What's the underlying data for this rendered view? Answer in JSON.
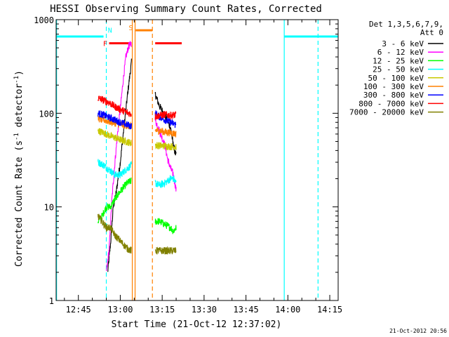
{
  "chart_data": {
    "type": "line",
    "title": "HESSI Observing Summary Count Rates, Corrected",
    "xlabel": "Start Time (21-Oct-12 12:37:02)",
    "ylabel": "Corrected Count Rate (s⁻¹ detector⁻¹)",
    "ylabel_main": "Corrected Count Rate (s",
    "ylabel_sup1": "-1",
    "ylabel_mid": " detector",
    "ylabel_sup2": "-1",
    "ylabel_end": ")",
    "yscale": "log",
    "ylim": [
      1,
      1000
    ],
    "xlim": [
      "12:37:02",
      "14:18:00"
    ],
    "xlim_minutes": [
      757.0333,
      858.0
    ],
    "yticks": [
      {
        "value": 1,
        "label": "1"
      },
      {
        "value": 10,
        "label": "10"
      },
      {
        "value": 100,
        "label": "100"
      },
      {
        "value": 1000,
        "label": "1000"
      }
    ],
    "xticks": [
      {
        "minute": 765,
        "label": "12:45"
      },
      {
        "minute": 780,
        "label": "13:00"
      },
      {
        "minute": 795,
        "label": "13:15"
      },
      {
        "minute": 810,
        "label": "13:30"
      },
      {
        "minute": 825,
        "label": "13:45"
      },
      {
        "minute": 840,
        "label": "14:00"
      },
      {
        "minute": 855,
        "label": "14:15"
      }
    ],
    "legend": {
      "header": [
        "Det 1,3,5,6,7,9,",
        "Att 0"
      ],
      "placement": "right"
    },
    "series": [
      {
        "name": "3 - 6 keV",
        "color": "#000000",
        "segments": [
          {
            "t0": 775.5,
            "t1": 784.0,
            "pts": [
              [
                775.5,
                2
              ],
              [
                776.5,
                4
              ],
              [
                777.5,
                10
              ],
              [
                778.5,
                14
              ],
              [
                780,
                30
              ],
              [
                781.5,
                80
              ],
              [
                783,
                200
              ],
              [
                784,
                350
              ]
            ]
          },
          {
            "t0": 792.5,
            "t1": 800.0,
            "pts": [
              [
                792.5,
                160
              ],
              [
                794,
                120
              ],
              [
                796,
                95
              ],
              [
                798,
                70
              ],
              [
                799,
                45
              ],
              [
                800,
                35
              ]
            ]
          }
        ]
      },
      {
        "name": "6 - 12 keV",
        "color": "#ff00ff",
        "segments": [
          {
            "t0": 775.0,
            "t1": 784.0,
            "pts": [
              [
                775,
                2
              ],
              [
                776,
                3.5
              ],
              [
                777,
                12
              ],
              [
                778,
                28
              ],
              [
                779,
                60
              ],
              [
                780,
                110
              ],
              [
                781,
                220
              ],
              [
                782,
                400
              ],
              [
                783,
                520
              ],
              [
                784,
                560
              ]
            ]
          },
          {
            "t0": 792.5,
            "t1": 800.0,
            "pts": [
              [
                792.5,
                85
              ],
              [
                794,
                65
              ],
              [
                796,
                45
              ],
              [
                797,
                32
              ],
              [
                798,
                26
              ],
              [
                799,
                22
              ],
              [
                800,
                15
              ]
            ]
          }
        ]
      },
      {
        "name": "12 - 25 keV",
        "color": "#00ff00",
        "segments": [
          {
            "t0": 772.0,
            "t1": 784.0,
            "pts": [
              [
                772,
                7
              ],
              [
                773.5,
                8
              ],
              [
                775,
                10
              ],
              [
                776.5,
                10
              ],
              [
                778,
                12
              ],
              [
                779.5,
                14
              ],
              [
                781,
                16
              ],
              [
                782.5,
                18
              ],
              [
                784,
                19
              ]
            ]
          },
          {
            "t0": 792.5,
            "t1": 800.0,
            "pts": [
              [
                792.5,
                7
              ],
              [
                794,
                7
              ],
              [
                796,
                6.5
              ],
              [
                798,
                6
              ],
              [
                799,
                5.5
              ],
              [
                800,
                6
              ]
            ]
          }
        ]
      },
      {
        "name": "25 - 50 keV",
        "color": "#00ffff",
        "segments": [
          {
            "t0": 772.0,
            "t1": 784.0,
            "pts": [
              [
                772,
                30
              ],
              [
                774,
                28
              ],
              [
                776,
                25
              ],
              [
                778,
                22
              ],
              [
                780,
                22
              ],
              [
                782,
                25
              ],
              [
                784,
                28
              ]
            ]
          },
          {
            "t0": 792.5,
            "t1": 800.0,
            "pts": [
              [
                792.5,
                18
              ],
              [
                794,
                17
              ],
              [
                796,
                18
              ],
              [
                798,
                20
              ],
              [
                799,
                20
              ],
              [
                800,
                18
              ]
            ]
          }
        ]
      },
      {
        "name": "50 - 100 keV",
        "color": "#c8c800",
        "segments": [
          {
            "t0": 772.0,
            "t1": 784.0,
            "pts": [
              [
                772,
                65
              ],
              [
                774,
                62
              ],
              [
                776,
                58
              ],
              [
                778,
                55
              ],
              [
                780,
                52
              ],
              [
                782,
                50
              ],
              [
                784,
                48
              ]
            ]
          },
          {
            "t0": 792.5,
            "t1": 800.0,
            "pts": [
              [
                792.5,
                46
              ],
              [
                794,
                45
              ],
              [
                796,
                45
              ],
              [
                798,
                44
              ],
              [
                800,
                44
              ]
            ]
          }
        ]
      },
      {
        "name": "100 - 300 keV",
        "color": "#ff8000",
        "segments": [
          {
            "t0": 772.0,
            "t1": 784.0,
            "pts": [
              [
                772,
                88
              ],
              [
                774,
                85
              ],
              [
                776,
                82
              ],
              [
                778,
                79
              ],
              [
                780,
                76
              ],
              [
                782,
                74
              ],
              [
                784,
                72
              ]
            ]
          },
          {
            "t0": 792.5,
            "t1": 800.0,
            "pts": [
              [
                792.5,
                66
              ],
              [
                794,
                65
              ],
              [
                796,
                63
              ],
              [
                798,
                62
              ],
              [
                800,
                60
              ]
            ]
          }
        ]
      },
      {
        "name": "300 - 800 keV",
        "color": "#0000ff",
        "segments": [
          {
            "t0": 772.0,
            "t1": 784.0,
            "pts": [
              [
                772,
                100
              ],
              [
                774,
                96
              ],
              [
                776,
                90
              ],
              [
                778,
                85
              ],
              [
                780,
                80
              ],
              [
                782,
                76
              ],
              [
                784,
                73
              ]
            ]
          },
          {
            "t0": 792.5,
            "t1": 800.0,
            "pts": [
              [
                792.5,
                100
              ],
              [
                794,
                92
              ],
              [
                796,
                85
              ],
              [
                798,
                80
              ],
              [
                800,
                75
              ]
            ]
          }
        ]
      },
      {
        "name": "800 - 7000 keV",
        "color": "#ff0000",
        "segments": [
          {
            "t0": 772.0,
            "t1": 784.0,
            "pts": [
              [
                772,
                145
              ],
              [
                774,
                138
              ],
              [
                776,
                130
              ],
              [
                778,
                118
              ],
              [
                780,
                110
              ],
              [
                782,
                103
              ],
              [
                784,
                98
              ]
            ]
          },
          {
            "t0": 792.5,
            "t1": 800.0,
            "pts": [
              [
                792.5,
                92
              ],
              [
                794,
                95
              ],
              [
                796,
                97
              ],
              [
                798,
                95
              ],
              [
                800,
                96
              ]
            ]
          }
        ]
      },
      {
        "name": "7000 - 20000 keV",
        "color": "#808000",
        "segments": [
          {
            "t0": 772.0,
            "t1": 784.0,
            "pts": [
              [
                772,
                8
              ],
              [
                773.5,
                7
              ],
              [
                775,
                6
              ],
              [
                776.5,
                6
              ],
              [
                778,
                5
              ],
              [
                779.5,
                4.5
              ],
              [
                781,
                4
              ],
              [
                782.5,
                3.6
              ],
              [
                784,
                3.4
              ]
            ]
          },
          {
            "t0": 792.5,
            "t1": 800.0,
            "pts": [
              [
                792.5,
                3.4
              ],
              [
                794,
                3.4
              ],
              [
                796,
                3.4
              ],
              [
                798,
                3.4
              ],
              [
                800,
                3.4
              ]
            ]
          }
        ]
      }
    ],
    "flag_bars": [
      {
        "color": "#00ffff",
        "t0": 757.0333,
        "t1": 774.0,
        "level": 660
      },
      {
        "color": "#00ffff",
        "t0": 838.7,
        "t1": 858.0,
        "level": 660
      },
      {
        "color": "#ff0000",
        "t0": 776.0,
        "t1": 784.0,
        "level": 560
      },
      {
        "color": "#ff0000",
        "t0": 792.5,
        "t1": 802.0,
        "level": 560
      },
      {
        "color": "#ff8000",
        "t0": 785.5,
        "t1": 791.5,
        "level": 770
      }
    ],
    "vlines": [
      {
        "color": "#00ffff",
        "t": 757.2,
        "style": "solid"
      },
      {
        "color": "#00ffff",
        "t": 775.0,
        "style": "dashed"
      },
      {
        "color": "#ff8000",
        "t": 784.3,
        "style": "solid"
      },
      {
        "color": "#ff8000",
        "t": 785.3,
        "style": "solid"
      },
      {
        "color": "#ff8000",
        "t": 791.5,
        "style": "dashed"
      },
      {
        "color": "#00ffff",
        "t": 838.7,
        "style": "solid"
      },
      {
        "color": "#00ffff",
        "t": 850.8,
        "style": "dashed"
      }
    ],
    "annotations": [
      {
        "text": "N",
        "color": "#00ffff",
        "t": 776.3,
        "level": 780
      },
      {
        "text": "F",
        "color": "#ff0000",
        "t": 774.6,
        "level": 560
      },
      {
        "text": "S",
        "color": "#ff8000",
        "t": 783.8,
        "level": 830
      }
    ],
    "footer_timestamp": "21-Oct-2012 20:56"
  }
}
